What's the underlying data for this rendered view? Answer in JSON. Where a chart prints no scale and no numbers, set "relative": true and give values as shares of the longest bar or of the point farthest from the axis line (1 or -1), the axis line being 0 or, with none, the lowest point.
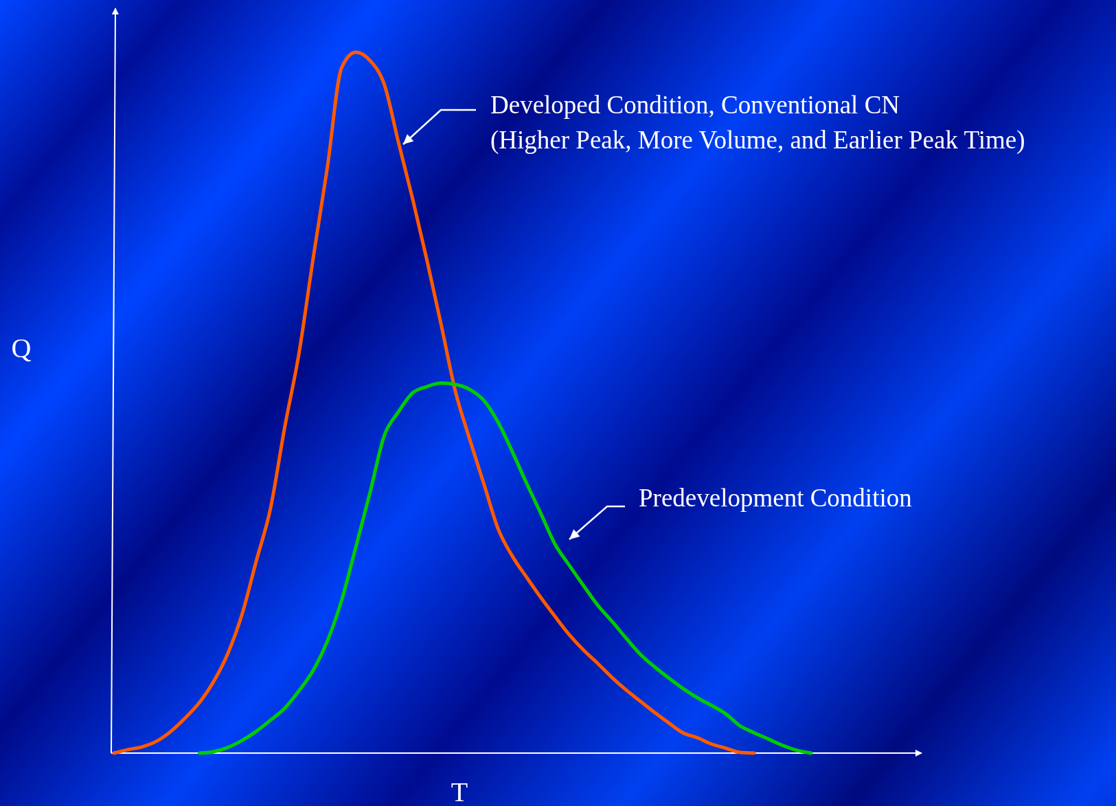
{
  "chart_data": {
    "type": "line",
    "relative": true,
    "xlabel": "T",
    "ylabel": "Q",
    "line_style": "solid",
    "categories": [
      null,
      null,
      null,
      null,
      null,
      null,
      null,
      null,
      null,
      null,
      null,
      null,
      null,
      null,
      null,
      null,
      null,
      null,
      null,
      null,
      null,
      null,
      null,
      null,
      null,
      null,
      null,
      null,
      null,
      null,
      null,
      null,
      null,
      null,
      null,
      null,
      null,
      null,
      null,
      null,
      null,
      null,
      null,
      null,
      null,
      null,
      null,
      null,
      null,
      null
    ],
    "series": [
      {
        "color": "#ff5a00",
        "values": [
          0,
          0.005,
          0.009,
          0.017,
          0.031,
          0.05,
          0.072,
          0.102,
          0.142,
          0.198,
          0.274,
          0.349,
          0.465,
          0.57,
          0.706,
          0.836,
          0.978,
          1,
          0.988,
          0.954,
          0.871,
          0.79,
          0.703,
          0.611,
          0.516,
          0.448,
          0.384,
          0.32,
          0.281,
          0.251,
          0.222,
          0.195,
          0.169,
          0.147,
          0.128,
          0.108,
          0.09,
          0.074,
          0.058,
          0.043,
          0.029,
          0.022,
          0.013,
          0.007,
          0.001,
          0,
          null,
          null,
          null,
          null
        ]
      },
      {
        "color": "#00cc00",
        "values": [
          null,
          null,
          null,
          null,
          null,
          null,
          0,
          0.002,
          0.008,
          0.018,
          0.031,
          0.047,
          0.064,
          0.089,
          0.118,
          0.16,
          0.218,
          0.294,
          0.372,
          0.453,
          0.487,
          0.514,
          0.523,
          0.528,
          0.526,
          0.519,
          0.503,
          0.472,
          0.43,
          0.385,
          0.342,
          0.298,
          0.268,
          0.239,
          0.211,
          0.188,
          0.164,
          0.141,
          0.123,
          0.107,
          0.092,
          0.079,
          0.068,
          0.056,
          0.039,
          0.029,
          0.02,
          0.011,
          0.004,
          0
        ]
      }
    ],
    "annotations": [
      "Developed Condition, Conventional CN",
      "(Higher Peak, More Volume, and Earlier Peak Time)",
      "Predevelopment Condition"
    ]
  }
}
